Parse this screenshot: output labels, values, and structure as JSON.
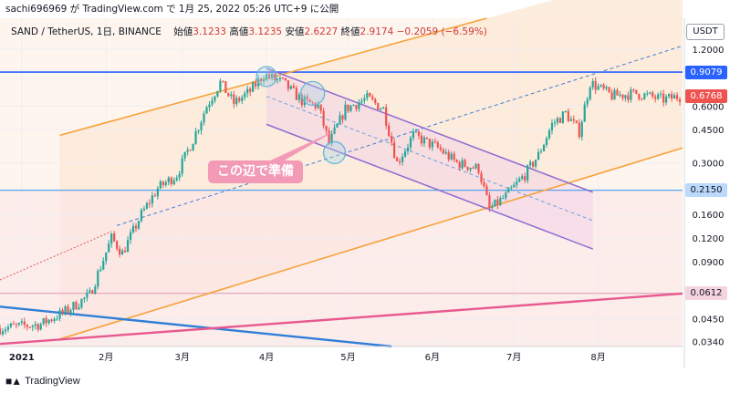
{
  "header": {
    "attribution": "sachi696969 が TradingView.com で 1月 25, 2022 05:26 UTC+9 に公開"
  },
  "legend": {
    "symbol": "SAND / TetherUS, 1日, BINANCE",
    "open_label": "始値",
    "open": "3.1233",
    "high_label": "高値",
    "high": "3.1235",
    "low_label": "安値",
    "low": "2.6227",
    "close_label": "終値",
    "close": "2.9174",
    "change": "−0.2059 (−6.59%)"
  },
  "quote_currency": "USDT",
  "annotation": "この辺で準備",
  "footer": {
    "logo_text": "TradingView"
  },
  "colors": {
    "up": "#26a69a",
    "down": "#ef5350",
    "orange_channel": "#f7a23b",
    "purple_channel": "#8e6cd1",
    "blue_line": "#2f7fd8",
    "pink_line": "#e8598f",
    "level_blue": "#2962ff",
    "annotation_bg": "#f39ab7"
  },
  "chart_data": {
    "type": "candlestick",
    "symbol": "SAND/USDT",
    "exchange": "BINANCE",
    "timeframe": "1D",
    "y_scale": "log",
    "ylim": [
      0.032,
      1.75
    ],
    "y_ticks": [
      {
        "value": 1.2,
        "label": "1.2000"
      },
      {
        "value": 0.6,
        "label": "0.6000"
      },
      {
        "value": 0.45,
        "label": "0.4500"
      },
      {
        "value": 0.3,
        "label": "0.3000"
      },
      {
        "value": 0.16,
        "label": "0.1600"
      },
      {
        "value": 0.12,
        "label": "0.1200"
      },
      {
        "value": 0.09,
        "label": "0.0900"
      },
      {
        "value": 0.045,
        "label": "0.0450"
      },
      {
        "value": 0.034,
        "label": "0.0340"
      }
    ],
    "x_ticks": [
      {
        "date": "2021-01-01",
        "label": "2021"
      },
      {
        "date": "2021-02-01",
        "label": "2月"
      },
      {
        "date": "2021-03-01",
        "label": "3月"
      },
      {
        "date": "2021-04-01",
        "label": "4月"
      },
      {
        "date": "2021-05-01",
        "label": "5月"
      },
      {
        "date": "2021-06-01",
        "label": "6月"
      },
      {
        "date": "2021-07-01",
        "label": "7月"
      },
      {
        "date": "2021-08-01",
        "label": "8月"
      }
    ],
    "price_labels": [
      {
        "value": 0.9079,
        "label": "0.9079",
        "style": "blue"
      },
      {
        "value": 0.6768,
        "label": "0.6768",
        "style": "red"
      },
      {
        "value": 0.215,
        "label": "0.2150",
        "style": "lightblue"
      },
      {
        "value": 0.0612,
        "label": "0.0612",
        "style": "pink"
      }
    ],
    "horizontal_levels": [
      {
        "value": 0.9079,
        "color": "#2962ff"
      },
      {
        "value": 0.215,
        "color": "#5aa2f0"
      },
      {
        "value": 0.0612,
        "color": "#e3a0b8"
      }
    ],
    "price_path": [
      {
        "date": "2020-12-24",
        "price": 0.04
      },
      {
        "date": "2021-01-08",
        "price": 0.042
      },
      {
        "date": "2021-01-18",
        "price": 0.05
      },
      {
        "date": "2021-01-26",
        "price": 0.06
      },
      {
        "date": "2021-02-03",
        "price": 0.12
      },
      {
        "date": "2021-02-07",
        "price": 0.1
      },
      {
        "date": "2021-02-14",
        "price": 0.16
      },
      {
        "date": "2021-02-20",
        "price": 0.22
      },
      {
        "date": "2021-02-27",
        "price": 0.26
      },
      {
        "date": "2021-03-05",
        "price": 0.4
      },
      {
        "date": "2021-03-10",
        "price": 0.6
      },
      {
        "date": "2021-03-15",
        "price": 0.8
      },
      {
        "date": "2021-03-20",
        "price": 0.62
      },
      {
        "date": "2021-03-26",
        "price": 0.72
      },
      {
        "date": "2021-03-31",
        "price": 0.88
      },
      {
        "date": "2021-04-07",
        "price": 0.8
      },
      {
        "date": "2021-04-14",
        "price": 0.64
      },
      {
        "date": "2021-04-20",
        "price": 0.6
      },
      {
        "date": "2021-04-24",
        "price": 0.38
      },
      {
        "date": "2021-04-30",
        "price": 0.58
      },
      {
        "date": "2021-05-08",
        "price": 0.66
      },
      {
        "date": "2021-05-14",
        "price": 0.58
      },
      {
        "date": "2021-05-19",
        "price": 0.3
      },
      {
        "date": "2021-05-25",
        "price": 0.42
      },
      {
        "date": "2021-06-03",
        "price": 0.36
      },
      {
        "date": "2021-06-10",
        "price": 0.3
      },
      {
        "date": "2021-06-18",
        "price": 0.28
      },
      {
        "date": "2021-06-22",
        "price": 0.17
      },
      {
        "date": "2021-06-28",
        "price": 0.2
      },
      {
        "date": "2021-07-05",
        "price": 0.26
      },
      {
        "date": "2021-07-10",
        "price": 0.33
      },
      {
        "date": "2021-07-15",
        "price": 0.48
      },
      {
        "date": "2021-07-20",
        "price": 0.55
      },
      {
        "date": "2021-07-25",
        "price": 0.44
      },
      {
        "date": "2021-07-29",
        "price": 0.8
      },
      {
        "date": "2021-08-06",
        "price": 0.68
      },
      {
        "date": "2021-08-15",
        "price": 0.7
      },
      {
        "date": "2021-08-25",
        "price": 0.65
      },
      {
        "date": "2021-09-01",
        "price": 0.68
      }
    ],
    "drawings": {
      "orange_channel_upper": [
        {
          "date": "2021-01-15",
          "price": 0.42
        },
        {
          "date": "2021-06-21",
          "price": 1.75
        }
      ],
      "orange_channel_lower": [
        {
          "date": "2021-01-15",
          "price": 0.035
        },
        {
          "date": "2021-09-01",
          "price": 0.36
        }
      ],
      "blue_dash_midline": [
        {
          "date": "2021-02-05",
          "price": 0.14
        },
        {
          "date": "2021-09-01",
          "price": 1.25
        }
      ],
      "purple_channel_upper": [
        {
          "date": "2021-04-01",
          "price": 0.95
        },
        {
          "date": "2021-07-30",
          "price": 0.21
        }
      ],
      "purple_channel_lower": [
        {
          "date": "2021-04-01",
          "price": 0.48
        },
        {
          "date": "2021-07-30",
          "price": 0.105
        }
      ],
      "blue_downtrend": [
        {
          "date": "2020-12-24",
          "price": 0.052
        },
        {
          "date": "2021-05-17",
          "price": 0.032
        }
      ],
      "pink_uptrend": [
        {
          "date": "2020-12-24",
          "price": 0.033
        },
        {
          "date": "2021-09-01",
          "price": 0.061
        }
      ]
    }
  }
}
